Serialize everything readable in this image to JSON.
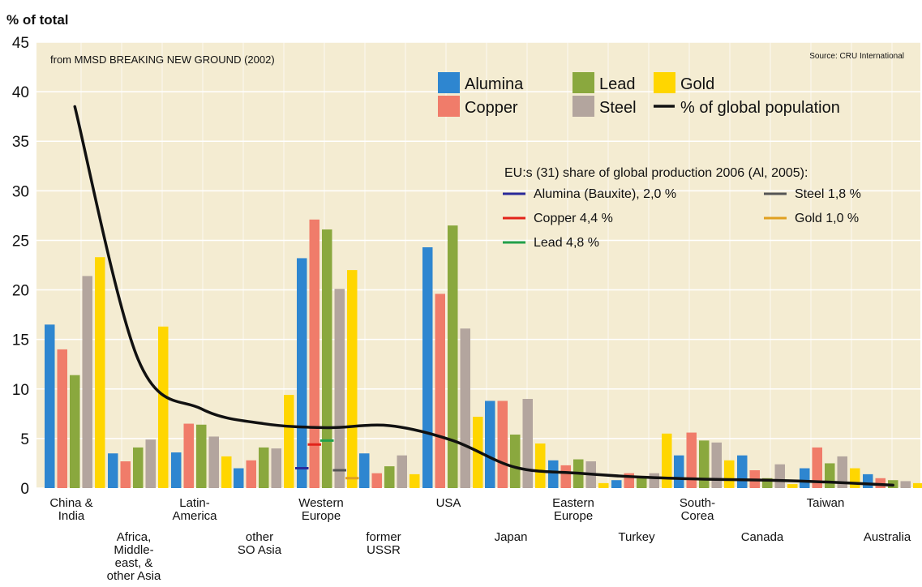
{
  "chart_data": {
    "type": "bar",
    "ylabel": "% of total",
    "note": "from MMSD BREAKING NEW GROUND (2002)",
    "source": "Source: CRU International",
    "ylim": [
      0,
      45
    ],
    "yticks": [
      0,
      5,
      10,
      15,
      20,
      25,
      30,
      35,
      40,
      45
    ],
    "grid": true,
    "legend_placement": "top-right",
    "categories": [
      [
        "China &",
        "India"
      ],
      [
        "Africa,",
        "Middle-",
        "east, &",
        "other Asia"
      ],
      [
        "Latin-",
        "America"
      ],
      [
        "other",
        "SO Asia"
      ],
      [
        "Western",
        "Europe"
      ],
      [
        "former",
        "USSR"
      ],
      [
        "USA"
      ],
      [
        "Japan"
      ],
      [
        "Eastern",
        "Europe"
      ],
      [
        "Turkey"
      ],
      [
        "South-",
        "Corea"
      ],
      [
        "Canada"
      ],
      [
        "Taiwan"
      ],
      [
        "Australia"
      ]
    ],
    "series": [
      {
        "name": "Alumina",
        "color": "#2e86d0",
        "values": [
          16.5,
          3.5,
          3.6,
          2.0,
          23.2,
          3.5,
          24.3,
          8.8,
          2.8,
          0.8,
          3.3,
          3.3,
          2.0,
          1.4
        ]
      },
      {
        "name": "Copper",
        "color": "#f07c6a",
        "values": [
          14.0,
          2.7,
          6.5,
          2.8,
          27.1,
          1.5,
          19.6,
          8.8,
          2.3,
          1.5,
          5.6,
          1.8,
          4.1,
          1.0
        ]
      },
      {
        "name": "Lead",
        "color": "#8aa83e",
        "values": [
          11.4,
          4.1,
          6.4,
          4.1,
          26.1,
          2.2,
          26.5,
          5.4,
          2.9,
          1.0,
          4.8,
          1.0,
          2.5,
          0.8
        ]
      },
      {
        "name": "Steel",
        "color": "#b3a59e",
        "values": [
          21.4,
          4.9,
          5.2,
          4.0,
          20.1,
          3.3,
          16.1,
          9.0,
          2.7,
          1.5,
          4.6,
          2.4,
          3.2,
          0.7
        ]
      },
      {
        "name": "Gold",
        "color": "#ffd600",
        "values": [
          23.3,
          16.3,
          3.2,
          9.4,
          22.0,
          1.4,
          7.2,
          4.5,
          0.5,
          5.5,
          2.8,
          0.4,
          2.0,
          0.5
        ]
      }
    ],
    "population_series": {
      "name": "% of global population",
      "color": "#111111",
      "values": [
        38.5,
        13.0,
        8.0,
        6.5,
        6.1,
        6.3,
        4.8,
        2.1,
        1.5,
        1.1,
        0.9,
        0.8,
        0.6,
        0.3
      ]
    },
    "eu_share": {
      "title": "EU:s (31) share of global production 2006 (Al, 2005):",
      "items": [
        {
          "label": "Alumina (Bauxite), 2,0 %",
          "color": "#2a2a9a",
          "value": 2.0,
          "series": "Alumina"
        },
        {
          "label": "Copper 4,4 %",
          "color": "#e2231a",
          "value": 4.4,
          "series": "Copper"
        },
        {
          "label": "Lead 4,8 %",
          "color": "#22a04b",
          "value": 4.8,
          "series": "Lead"
        },
        {
          "label": "Steel 1,8 %",
          "color": "#555555",
          "value": 1.8,
          "series": "Steel"
        },
        {
          "label": "Gold 1,0 %",
          "color": "#e0a020",
          "value": 1.0,
          "series": "Gold"
        }
      ]
    }
  },
  "colors": {
    "plot_background": "#f4ecd2",
    "grid": "#ffffff"
  }
}
